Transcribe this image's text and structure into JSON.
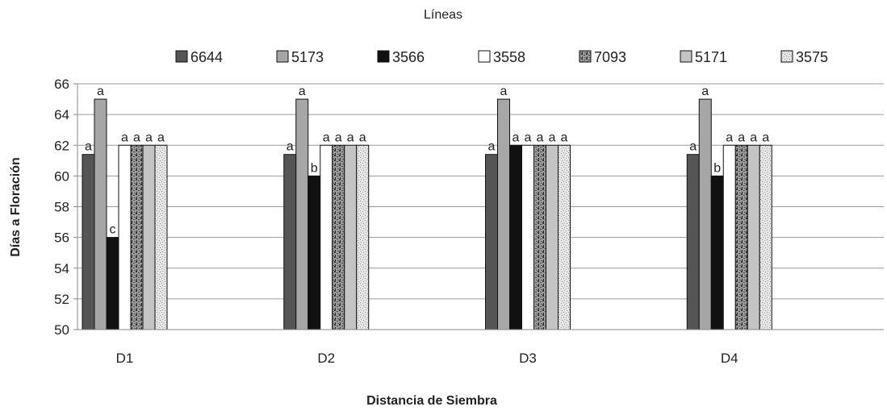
{
  "chart_data": {
    "type": "bar",
    "legend_title": "Líneas",
    "xlabel": "Distancia de Siembra",
    "ylabel": "Días a Floración",
    "categories": [
      "D1",
      "D2",
      "D3",
      "D4"
    ],
    "ylim": [
      50,
      66
    ],
    "yticks": [
      "50",
      "52",
      "54",
      "56",
      "58",
      "60",
      "62",
      "64",
      "66"
    ],
    "grid": true,
    "legend_position": "top",
    "series": [
      {
        "name": "6644",
        "values": [
          61.4,
          61.4,
          61.4,
          61.4
        ],
        "labels": [
          "a",
          "a",
          "a",
          "a"
        ],
        "color": "#555555",
        "pattern": "solid"
      },
      {
        "name": "5173",
        "values": [
          65,
          65,
          65,
          65
        ],
        "labels": [
          "a",
          "a",
          "a",
          "a"
        ],
        "color": "#a6a6a6",
        "pattern": "solid"
      },
      {
        "name": "3566",
        "values": [
          56,
          60,
          62,
          60
        ],
        "labels": [
          "c",
          "b",
          "a",
          "b"
        ],
        "color": "#111111",
        "pattern": "solid"
      },
      {
        "name": "3558",
        "values": [
          62,
          62,
          62,
          62
        ],
        "labels": [
          "a",
          "a",
          "a",
          "a"
        ],
        "color": "#ffffff",
        "pattern": "solid"
      },
      {
        "name": "7093",
        "values": [
          62,
          62,
          62,
          62
        ],
        "labels": [
          "a",
          "a",
          "a",
          "a"
        ],
        "color": "#7a7a7a",
        "pattern": "speckle-dark"
      },
      {
        "name": "5171",
        "values": [
          62,
          62,
          62,
          62
        ],
        "labels": [
          "a",
          "a",
          "a",
          "a"
        ],
        "color": "#c4c4c4",
        "pattern": "solid"
      },
      {
        "name": "3575",
        "values": [
          62,
          62,
          62,
          62
        ],
        "labels": [
          "a",
          "a",
          "a",
          "a"
        ],
        "color": "#dddddd",
        "pattern": "speckle-light"
      }
    ]
  }
}
